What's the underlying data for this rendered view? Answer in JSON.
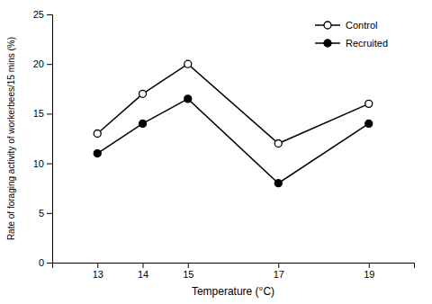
{
  "chart_data": {
    "type": "line",
    "x": [
      13,
      14,
      15,
      17,
      19
    ],
    "series": [
      {
        "name": "Control",
        "color": "black",
        "marker": "circle-open",
        "values": [
          13,
          17,
          20,
          12,
          16
        ]
      },
      {
        "name": "Recruited",
        "color": "black",
        "marker": "circle",
        "values": [
          11,
          14,
          16.5,
          8,
          14
        ]
      }
    ],
    "xlabel": "Temperature (°C)",
    "ylabel": "Rate of foraging activity of workerbees/15 mins (%)",
    "xlim": [
      12,
      20
    ],
    "xticks": [
      13,
      14,
      15,
      17,
      19
    ],
    "ylim": [
      0,
      25
    ],
    "yticks": [
      0,
      5,
      10,
      15,
      20,
      25
    ],
    "grid": false,
    "legend": "upper right"
  }
}
